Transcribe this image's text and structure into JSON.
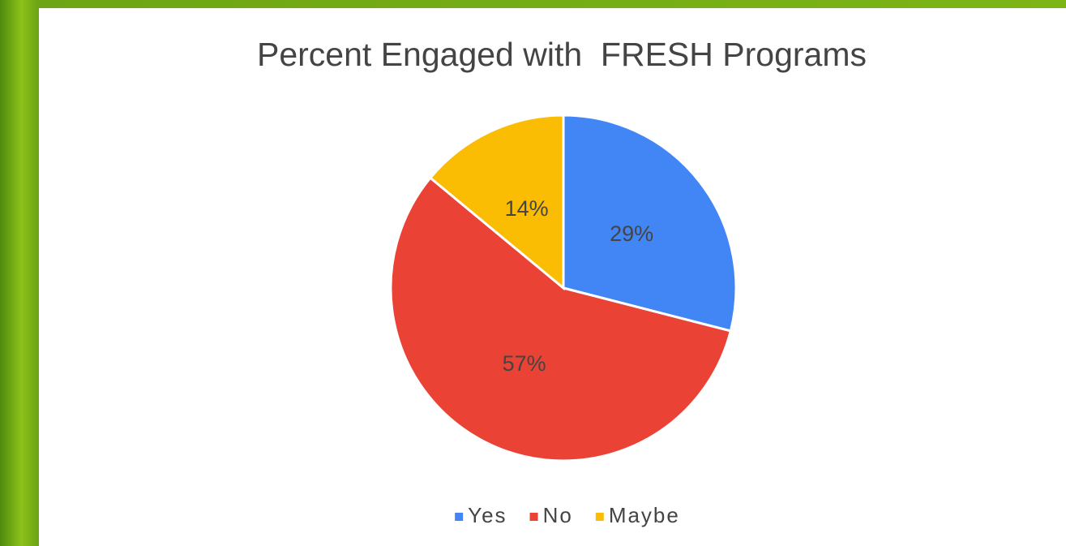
{
  "chart_data": {
    "type": "pie",
    "title": "Percent Engaged with  FRESH Programs",
    "categories": [
      "Yes",
      "No",
      "Maybe"
    ],
    "values": [
      29,
      57,
      14
    ],
    "value_labels": [
      "29%",
      "57%",
      "14%"
    ],
    "colors": [
      "#4285f4",
      "#ea4335",
      "#fbbc04"
    ],
    "legend": "bottom"
  }
}
